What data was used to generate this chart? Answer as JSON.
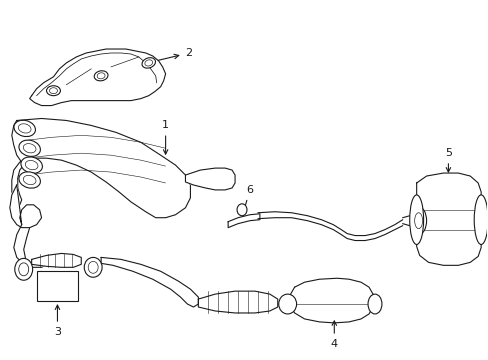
{
  "bg_color": "#ffffff",
  "line_color": "#1a1a1a",
  "line_width": 0.8,
  "fig_width": 4.89,
  "fig_height": 3.6,
  "dpi": 100
}
